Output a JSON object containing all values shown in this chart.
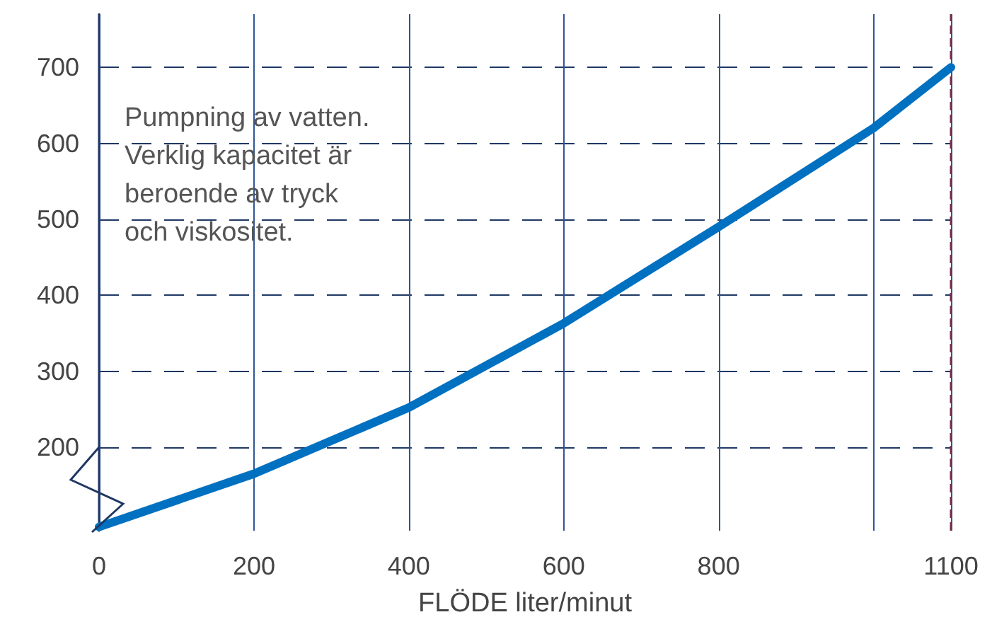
{
  "chart_data": {
    "type": "line",
    "xlabel": "FLÖDE liter/minut",
    "annotations": [
      "Pumpning av vatten.\nVerklig kapacitet är\nberoende av tryck\noch viskositet."
    ],
    "x": [
      0,
      200,
      400,
      600,
      800,
      1000,
      1100
    ],
    "series": [
      {
        "color": "#0070c0",
        "values": [
          95,
          165,
          252,
          363,
          490,
          620,
          700
        ]
      }
    ],
    "xlim": [
      0,
      1100
    ],
    "xticks": [
      0,
      200,
      400,
      600,
      800,
      {
        "value": 1000,
        "label": null
      },
      1100
    ],
    "ylim": [
      90,
      770
    ],
    "yticks": [
      200,
      300,
      400,
      500,
      600,
      700
    ],
    "grid": true,
    "marker": "none",
    "line_style": "solid",
    "ref_lines": [
      {
        "axis": "x",
        "value": 1100,
        "label": null,
        "color": "#7b2c4a",
        "line_style": "dashed"
      }
    ]
  }
}
